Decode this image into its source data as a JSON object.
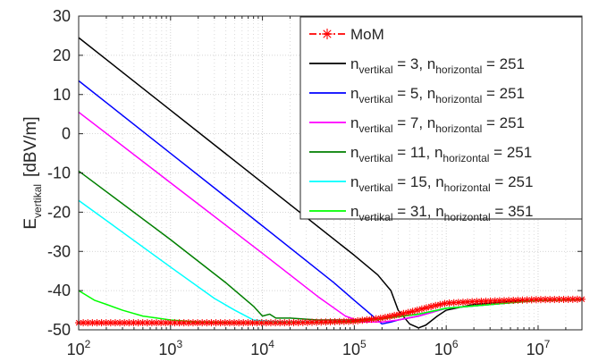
{
  "chart_data": {
    "type": "line",
    "title": "",
    "xlabel": "",
    "ylabel": "E",
    "ylabel_sub": "vertikal",
    "ylabel_unit": "[dBV/m]",
    "x_scale": "log",
    "xlim": [
      100,
      30000000
    ],
    "ylim": [
      -50,
      30
    ],
    "grid": true,
    "minor_grid": true,
    "legend_position": "top-right",
    "x_ticks": [
      {
        "base": "10",
        "exp": "2",
        "value": 100
      },
      {
        "base": "10",
        "exp": "3",
        "value": 1000
      },
      {
        "base": "10",
        "exp": "4",
        "value": 10000
      },
      {
        "base": "10",
        "exp": "5",
        "value": 100000
      },
      {
        "base": "10",
        "exp": "6",
        "value": 1000000
      },
      {
        "base": "10",
        "exp": "7",
        "value": 10000000
      }
    ],
    "y_ticks": [
      {
        "label": "30",
        "value": 30
      },
      {
        "label": "20",
        "value": 20
      },
      {
        "label": "10",
        "value": 10
      },
      {
        "label": "0",
        "value": 0
      },
      {
        "label": "-10",
        "value": -10
      },
      {
        "label": "-20",
        "value": -20
      },
      {
        "label": "-30",
        "value": -30
      },
      {
        "label": "-40",
        "value": -40
      },
      {
        "label": "-50",
        "value": -50
      }
    ],
    "series": [
      {
        "name": "MoM",
        "color": "#ff0000",
        "style": "dash-dot",
        "marker": "asterisk",
        "x": [
          100,
          200,
          500,
          1000,
          2000,
          5000,
          10000,
          20000,
          50000,
          100000,
          200000,
          400000,
          700000,
          1000000,
          2000000,
          5000000,
          10000000,
          30000000
        ],
        "y": [
          -48.2,
          -48.2,
          -48.2,
          -48.2,
          -48.2,
          -48.2,
          -48.2,
          -48.2,
          -48.0,
          -47.8,
          -47.0,
          -45.5,
          -44.0,
          -43.2,
          -42.8,
          -42.5,
          -42.3,
          -42.2
        ]
      },
      {
        "name": "n",
        "legend": [
          {
            "t": "n"
          },
          {
            "t": "vertikal",
            "s": 1
          },
          {
            "t": " = 3,  n"
          },
          {
            "t": "horizontal",
            "s": 1
          },
          {
            "t": " = 251"
          }
        ],
        "color": "#000000",
        "style": "solid",
        "x": [
          100,
          1000,
          10000,
          100000,
          180000,
          250000,
          300000,
          400000,
          500000,
          600000,
          800000,
          1000000,
          2000000,
          5000000,
          10000000,
          30000000
        ],
        "y": [
          24.5,
          6.0,
          -12.5,
          -31.0,
          -36.0,
          -40.0,
          -45.0,
          -48.5,
          -49.5,
          -48.8,
          -46.5,
          -45.0,
          -43.5,
          -42.8,
          -42.5,
          -42.3
        ]
      },
      {
        "name": "n",
        "legend": [
          {
            "t": "n"
          },
          {
            "t": "vertikal",
            "s": 1
          },
          {
            "t": " = 5,  n"
          },
          {
            "t": "horizontal",
            "s": 1
          },
          {
            "t": " = 251"
          }
        ],
        "color": "#0000ff",
        "style": "solid",
        "x": [
          100,
          1000,
          10000,
          60000,
          100000,
          150000,
          200000,
          250000,
          300000,
          500000,
          1000000,
          10000000,
          30000000
        ],
        "y": [
          13.5,
          -5.0,
          -23.5,
          -38.0,
          -42.5,
          -46.0,
          -48.5,
          -48.0,
          -47.5,
          -46.5,
          -44.5,
          -42.5,
          -42.3
        ]
      },
      {
        "name": "n",
        "legend": [
          {
            "t": "n"
          },
          {
            "t": "vertikal",
            "s": 1
          },
          {
            "t": " = 7,  n"
          },
          {
            "t": "horizontal",
            "s": 1
          },
          {
            "t": " = 251"
          }
        ],
        "color": "#ff00ff",
        "style": "solid",
        "x": [
          100,
          1000,
          10000,
          40000,
          80000,
          120000,
          200000,
          300000,
          500000,
          1000000,
          10000000,
          30000000
        ],
        "y": [
          5.5,
          -12.5,
          -30.5,
          -41.5,
          -46.5,
          -48.0,
          -48.0,
          -47.5,
          -46.5,
          -44.5,
          -42.5,
          -42.3
        ]
      },
      {
        "name": "n",
        "legend": [
          {
            "t": "n"
          },
          {
            "t": "vertikal",
            "s": 1
          },
          {
            "t": " = 11,  n"
          },
          {
            "t": "horizontal",
            "s": 1
          },
          {
            "t": " = 251"
          }
        ],
        "color": "#007f00",
        "style": "solid",
        "x": [
          100,
          1000,
          4000,
          8000,
          10000,
          12000,
          14000,
          20000,
          40000,
          100000,
          200000,
          500000,
          1000000,
          10000000,
          30000000
        ],
        "y": [
          -9.5,
          -27.0,
          -38.0,
          -44.0,
          -46.5,
          -46.0,
          -47.0,
          -47.0,
          -47.5,
          -47.5,
          -47.0,
          -46.0,
          -44.5,
          -42.5,
          -42.3
        ]
      },
      {
        "name": "n",
        "legend": [
          {
            "t": "n"
          },
          {
            "t": "vertikal",
            "s": 1
          },
          {
            "t": " = 15,  n"
          },
          {
            "t": "horizontal",
            "s": 1
          },
          {
            "t": " = 251"
          }
        ],
        "color": "#00ffff",
        "style": "solid",
        "x": [
          100,
          1000,
          3000,
          5000,
          8000,
          12000,
          20000,
          50000,
          100000,
          200000,
          500000,
          1000000,
          10000000,
          30000000
        ],
        "y": [
          -17.0,
          -34.0,
          -42.0,
          -45.0,
          -47.5,
          -47.8,
          -48.0,
          -48.0,
          -47.8,
          -47.2,
          -46.0,
          -44.5,
          -42.5,
          -42.3
        ]
      },
      {
        "name": "n",
        "legend": [
          {
            "t": "n"
          },
          {
            "t": "vertikal",
            "s": 1
          },
          {
            "t": " = 31,  n"
          },
          {
            "t": "horizontal",
            "s": 1
          },
          {
            "t": " = 351"
          }
        ],
        "color": "#00ff00",
        "style": "solid",
        "x": [
          100,
          150,
          200,
          300,
          500,
          1000,
          2000,
          5000,
          10000,
          100000,
          200000,
          500000,
          1000000,
          10000000,
          30000000
        ],
        "y": [
          -40.0,
          -42.5,
          -43.5,
          -45.0,
          -46.5,
          -47.5,
          -48.0,
          -48.2,
          -48.2,
          -48.0,
          -47.2,
          -46.0,
          -44.5,
          -42.5,
          -42.3
        ]
      }
    ]
  }
}
